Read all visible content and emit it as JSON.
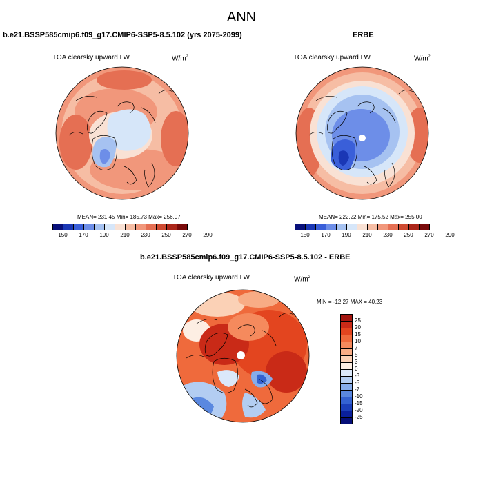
{
  "title": "ANN",
  "panels": [
    {
      "case_title": "b.e21.BSSP585cmip6.f09_g17.CMIP6-SSP5-8.5.102 (yrs 2075-2099)",
      "var_title": "TOA clearsky upward LW",
      "units_base": "W/m",
      "units_exp": "2",
      "stats": "MEAN= 231.45  Min= 185.73  Max= 256.07"
    },
    {
      "case_title": "ERBE",
      "var_title": "TOA clearsky upward LW",
      "units_base": "W/m",
      "units_exp": "2",
      "stats": "MEAN= 222.22  Min= 175.52  Max= 255.00"
    },
    {
      "case_title": "b.e21.BSSP585cmip6.f09_g17.CMIP6-SSP5-8.5.102 - ERBE",
      "var_title": "TOA clearsky upward LW",
      "units_base": "W/m",
      "units_exp": "2",
      "stats": "MIN = -12.27 MAX =  40.23"
    }
  ],
  "colorbar_abs": {
    "colors": [
      "#08107a",
      "#1a37b5",
      "#3a5fd9",
      "#6d8ee8",
      "#a6c2f1",
      "#d6e6f9",
      "#f9e1d4",
      "#f6bda4",
      "#f1977b",
      "#e56f53",
      "#cf4a31",
      "#ac2619",
      "#790a0a"
    ],
    "labels": [
      "150",
      "170",
      "190",
      "210",
      "230",
      "250",
      "270",
      "290"
    ]
  },
  "colorbar_diff": {
    "colors": [
      "#a3160f",
      "#c92a17",
      "#e3451f",
      "#ef6a3c",
      "#f58a5d",
      "#f8ac85",
      "#fbd1b6",
      "#fdeee3",
      "#dbe8fa",
      "#b3cdf2",
      "#86aceb",
      "#5a88e0",
      "#3462d1",
      "#1b3fb9",
      "#0a209c",
      "#050e78"
    ],
    "labels": [
      "25",
      "20",
      "15",
      "10",
      "7",
      "5",
      "3",
      "0",
      "-3",
      "-5",
      "-7",
      "-10",
      "-15",
      "-20",
      "-25"
    ]
  },
  "chart_data": {
    "type": "heatmap",
    "projection": "north polar stereographic",
    "maps": [
      {
        "name": "b.e21.BSSP585cmip6.f09_g17.CMIP6-SSP5-8.5.102 (yrs 2075-2099)",
        "mean": 231.45,
        "min": 185.73,
        "max": 256.07,
        "contour_levels": [
          150,
          170,
          190,
          210,
          230,
          250,
          270,
          290
        ]
      },
      {
        "name": "ERBE",
        "mean": 222.22,
        "min": 175.52,
        "max": 255.0,
        "contour_levels": [
          150,
          170,
          190,
          210,
          230,
          250,
          270,
          290
        ]
      },
      {
        "name": "b.e21.BSSP585cmip6.f09_g17.CMIP6-SSP5-8.5.102 - ERBE",
        "min": -12.27,
        "max": 40.23,
        "contour_levels": [
          -25,
          -20,
          -15,
          -10,
          -7,
          -5,
          -3,
          0,
          3,
          5,
          7,
          10,
          15,
          20,
          25
        ]
      }
    ]
  }
}
